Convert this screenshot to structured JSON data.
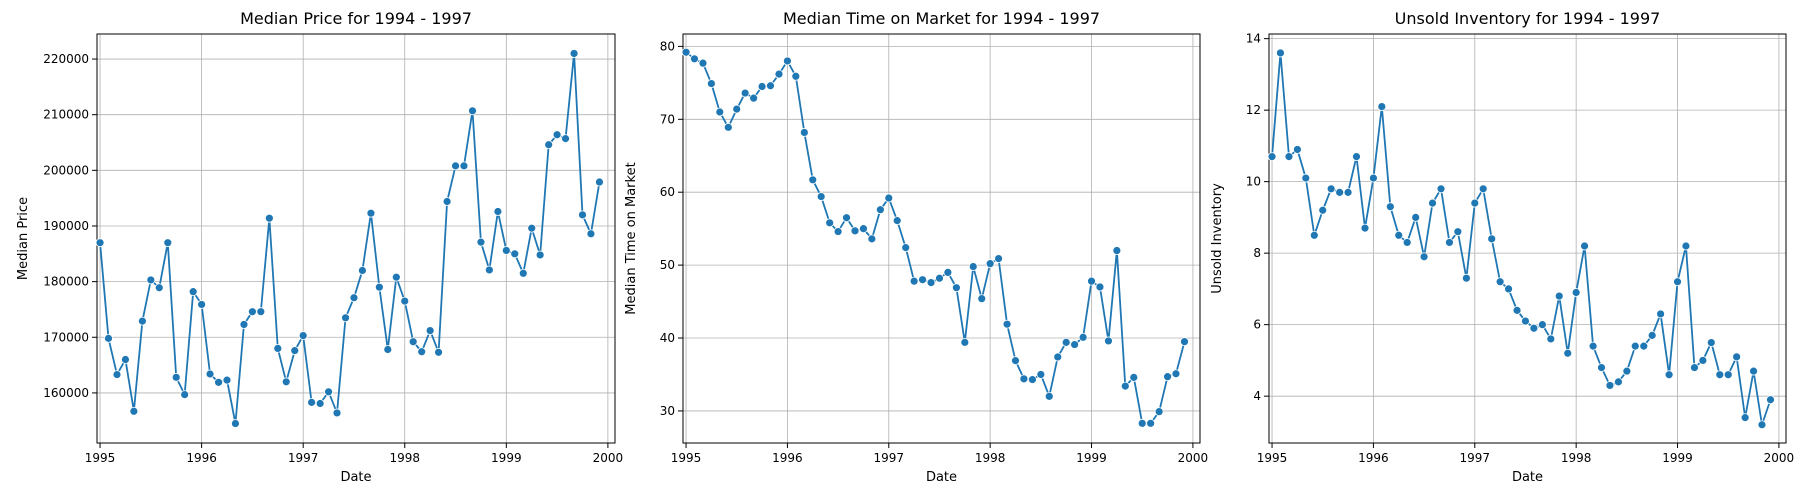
{
  "chart_data": [
    {
      "type": "line",
      "title": "Median Price for 1994 - 1997",
      "xlabel": "Date",
      "ylabel": "Median Price",
      "xlim": [
        1994.97,
        2000.07
      ],
      "ylim": [
        151000,
        224500
      ],
      "xticks": [
        1995,
        1996,
        1997,
        1998,
        1999,
        2000
      ],
      "yticks": [
        160000,
        170000,
        180000,
        190000,
        200000,
        210000,
        220000
      ],
      "grid": true,
      "series_color": "#1f77b4",
      "series": [
        {
          "x": [
            1995.0,
            1995.083,
            1995.167,
            1995.25,
            1995.333,
            1995.417,
            1995.5,
            1995.583,
            1995.667,
            1995.75,
            1995.833,
            1995.917,
            1996.0,
            1996.083,
            1996.167,
            1996.25,
            1996.333,
            1996.417,
            1996.5,
            1996.583,
            1996.667,
            1996.75,
            1996.833,
            1996.917,
            1997.0,
            1997.083,
            1997.167,
            1997.25,
            1997.333,
            1997.417,
            1997.5,
            1997.583,
            1997.667,
            1997.75,
            1997.833,
            1997.917,
            1998.0,
            1998.083,
            1998.167,
            1998.25,
            1998.333,
            1998.417,
            1998.5,
            1998.583,
            1998.667,
            1998.75,
            1998.833,
            1998.917,
            1999.0,
            1999.083,
            1999.167,
            1999.25,
            1999.333,
            1999.417,
            1999.5,
            1999.583,
            1999.667,
            1999.75,
            1999.833,
            1999.917
          ],
          "values": [
            187000,
            169800,
            163300,
            166000,
            156700,
            172900,
            180300,
            178900,
            187000,
            162800,
            159700,
            178200,
            175900,
            163400,
            161900,
            162300,
            154500,
            172300,
            174600,
            174600,
            191400,
            168000,
            162000,
            167600,
            170300,
            158300,
            158100,
            160200,
            156400,
            173500,
            177100,
            182000,
            192300,
            179000,
            167800,
            180800,
            176500,
            169200,
            167400,
            171200,
            167300,
            194400,
            200800,
            200800,
            210700,
            187100,
            182100,
            192600,
            185600,
            185000,
            181500,
            189600,
            184800,
            204600,
            206400,
            205700,
            221000,
            192000,
            188600,
            197900
          ]
        }
      ]
    },
    {
      "type": "line",
      "title": "Median Time on Market for 1994 - 1997",
      "xlabel": "Date",
      "ylabel": "Median Time on Market",
      "xlim": [
        1994.97,
        2000.07
      ],
      "ylim": [
        25.6,
        81.7
      ],
      "xticks": [
        1995,
        1996,
        1997,
        1998,
        1999,
        2000
      ],
      "yticks": [
        30,
        40,
        50,
        60,
        70,
        80
      ],
      "grid": true,
      "series_color": "#1f77b4",
      "series": [
        {
          "x": [
            1995.0,
            1995.083,
            1995.167,
            1995.25,
            1995.333,
            1995.417,
            1995.5,
            1995.583,
            1995.667,
            1995.75,
            1995.833,
            1995.917,
            1996.0,
            1996.083,
            1996.167,
            1996.25,
            1996.333,
            1996.417,
            1996.5,
            1996.583,
            1996.667,
            1996.75,
            1996.833,
            1996.917,
            1997.0,
            1997.083,
            1997.167,
            1997.25,
            1997.333,
            1997.417,
            1997.5,
            1997.583,
            1997.667,
            1997.75,
            1997.833,
            1997.917,
            1998.0,
            1998.083,
            1998.167,
            1998.25,
            1998.333,
            1998.417,
            1998.5,
            1998.583,
            1998.667,
            1998.75,
            1998.833,
            1998.917,
            1999.0,
            1999.083,
            1999.167,
            1999.25,
            1999.333,
            1999.417,
            1999.5,
            1999.583,
            1999.667,
            1999.75,
            1999.833,
            1999.917
          ],
          "values": [
            79.2,
            78.3,
            77.7,
            74.9,
            71.0,
            68.9,
            71.4,
            73.6,
            72.9,
            74.5,
            74.6,
            76.2,
            78.0,
            75.9,
            68.2,
            61.7,
            59.4,
            55.8,
            54.6,
            56.5,
            54.7,
            55.0,
            53.6,
            57.6,
            59.2,
            56.1,
            52.4,
            47.8,
            48.0,
            47.6,
            48.2,
            49.0,
            46.9,
            39.4,
            49.8,
            45.4,
            50.2,
            50.9,
            41.9,
            36.9,
            34.4,
            34.3,
            35.0,
            32.0,
            37.4,
            39.4,
            39.1,
            40.1,
            47.8,
            47.0,
            39.6,
            52.0,
            33.4,
            34.6,
            28.3,
            28.3,
            29.9,
            34.7,
            35.1,
            39.5
          ]
        }
      ]
    },
    {
      "type": "line",
      "title": "Unsold Inventory for 1994 - 1997",
      "xlabel": "Date",
      "ylabel": "Unsold Inventory",
      "xlim": [
        1994.97,
        2000.07
      ],
      "ylim": [
        2.69,
        14.13
      ],
      "xticks": [
        1995,
        1996,
        1997,
        1998,
        1999,
        2000
      ],
      "yticks": [
        4,
        6,
        8,
        10,
        12,
        14
      ],
      "grid": true,
      "series_color": "#1f77b4",
      "series": [
        {
          "x": [
            1995.0,
            1995.083,
            1995.167,
            1995.25,
            1995.333,
            1995.417,
            1995.5,
            1995.583,
            1995.667,
            1995.75,
            1995.833,
            1995.917,
            1996.0,
            1996.083,
            1996.167,
            1996.25,
            1996.333,
            1996.417,
            1996.5,
            1996.583,
            1996.667,
            1996.75,
            1996.833,
            1996.917,
            1997.0,
            1997.083,
            1997.167,
            1997.25,
            1997.333,
            1997.417,
            1997.5,
            1997.583,
            1997.667,
            1997.75,
            1997.833,
            1997.917,
            1998.0,
            1998.083,
            1998.167,
            1998.25,
            1998.333,
            1998.417,
            1998.5,
            1998.583,
            1998.667,
            1998.75,
            1998.833,
            1998.917,
            1999.0,
            1999.083,
            1999.167,
            1999.25,
            1999.333,
            1999.417,
            1999.5,
            1999.583,
            1999.667,
            1999.75,
            1999.833,
            1999.917
          ],
          "values": [
            10.7,
            13.6,
            10.7,
            10.9,
            10.1,
            8.5,
            9.2,
            9.8,
            9.7,
            9.7,
            10.7,
            8.7,
            10.1,
            12.1,
            9.3,
            8.5,
            8.3,
            9.0,
            7.9,
            9.4,
            9.8,
            8.3,
            8.6,
            7.3,
            9.4,
            9.8,
            8.4,
            7.2,
            7.0,
            6.4,
            6.1,
            5.9,
            6.0,
            5.6,
            6.8,
            5.2,
            6.9,
            8.2,
            5.4,
            4.8,
            4.3,
            4.4,
            4.7,
            5.4,
            5.4,
            5.7,
            6.3,
            4.6,
            7.2,
            8.2,
            4.8,
            5.0,
            5.5,
            4.6,
            4.6,
            5.1,
            3.4,
            4.7,
            3.2,
            3.9
          ]
        }
      ]
    }
  ]
}
